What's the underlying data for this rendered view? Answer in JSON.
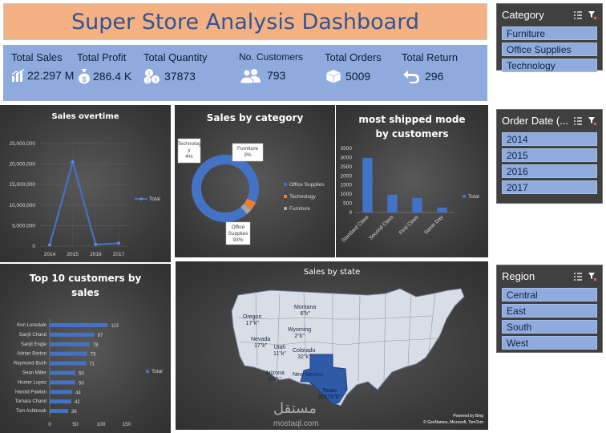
{
  "header": {
    "title": "Super Store Analysis Dashboard"
  },
  "kpis": {
    "total_sales": {
      "label": "Total Sales",
      "value": "22.297 M"
    },
    "total_profit": {
      "label": "Total Profit",
      "value": "286.4 K"
    },
    "total_quantity": {
      "label": "Total Quantity",
      "value": "37873"
    },
    "no_customers": {
      "label": "No. Customers",
      "value": "793"
    },
    "total_orders": {
      "label": "Total Orders",
      "value": "5009"
    },
    "total_return": {
      "label": "Total Return",
      "value": "296"
    }
  },
  "slicers": {
    "category": {
      "title": "Category",
      "items": [
        "Furniture",
        "Office Supplies",
        "Technology"
      ]
    },
    "order_date": {
      "title": "Order Date (...",
      "items": [
        "2014",
        "2015",
        "2016",
        "2017"
      ]
    },
    "region": {
      "title": "Region",
      "items": [
        "Central",
        "East",
        "South",
        "West"
      ]
    }
  },
  "chart_data": [
    {
      "id": "sales_overtime",
      "type": "line",
      "title": "Sales overtime",
      "categories": [
        "2014",
        "2015",
        "2016",
        "2017"
      ],
      "series": [
        {
          "name": "Total",
          "values": [
            300000,
            20500000,
            400000,
            700000
          ]
        }
      ],
      "ylim": [
        0,
        25000000
      ],
      "yticks": [
        "0",
        "5,000,000",
        "10,000,000",
        "15,000,000",
        "20,000,000",
        "25,000,000"
      ],
      "legend": "right",
      "color": "#4472c4"
    },
    {
      "id": "sales_by_category",
      "type": "pie",
      "title": "Sales by category",
      "labels": [
        "Office Supplies",
        "Technology",
        "Furniture"
      ],
      "values": [
        93,
        4,
        3
      ],
      "data_labels": [
        [
          "Office",
          "Supplies",
          "93%"
        ],
        [
          "Technolog",
          "y",
          "4%"
        ],
        [
          "Furniture",
          "3%"
        ]
      ],
      "colors": [
        "#4472c4",
        "#ed7d31",
        "#a5a5a5"
      ],
      "legend": "right"
    },
    {
      "id": "shipped_mode",
      "type": "bar",
      "title_lines": [
        "most shipped mode",
        "by customers"
      ],
      "categories": [
        "Standard Class",
        "Second Class",
        "First Class",
        "Same Day"
      ],
      "series": [
        {
          "name": "Total",
          "values": [
            2980,
            970,
            790,
            270
          ]
        }
      ],
      "ylim": [
        0,
        3500
      ],
      "yticks": [
        "0",
        "500",
        "1000",
        "1500",
        "2000",
        "2500",
        "3000",
        "3500"
      ],
      "legend": "right",
      "color": "#4472c4"
    },
    {
      "id": "top_customers",
      "type": "bar",
      "orientation": "horizontal",
      "title_lines": [
        "Top 10 customers by",
        "sales"
      ],
      "categories": [
        "Ken Lonsdale",
        "Sanjit Chand",
        "Sanjit Engle",
        "Adrian Barton",
        "Raymond Buch",
        "Sean Miller",
        "Hunter Lopez",
        "Harold Pawlan",
        "Tamara Chand",
        "Tom Ashbrook"
      ],
      "series": [
        {
          "name": "Total",
          "values": [
            113,
            87,
            78,
            73,
            71,
            50,
            50,
            44,
            42,
            36
          ]
        }
      ],
      "xlim": [
        0,
        150
      ],
      "xticks": [
        "0",
        "50",
        "100",
        "150"
      ],
      "legend": "right",
      "color": "#4472c4"
    }
  ],
  "map": {
    "title": "Sales by state",
    "labels": [
      {
        "name": "Montana",
        "value": "6\"k\""
      },
      {
        "name": "Oregon",
        "value": "17\"k\""
      },
      {
        "name": "Wyoming",
        "value": "2\"k\""
      },
      {
        "name": "Nevada",
        "value": "17\"k\""
      },
      {
        "name": "Utah",
        "value": "11\"k\""
      },
      {
        "name": "Colorado",
        "value": "32\"k\""
      },
      {
        "name": "Arizona",
        "value": "35\"k\""
      },
      {
        "name": "New Mexico",
        "value": ""
      },
      {
        "name": "Texas",
        "value": "20170\"k\""
      }
    ],
    "credit_line1": "Powered by Bing",
    "credit_line2": "© GeoNames, Microsoft, TomTom"
  },
  "watermark": {
    "arabic": "مستقل",
    "latin": "mostaql.com"
  }
}
